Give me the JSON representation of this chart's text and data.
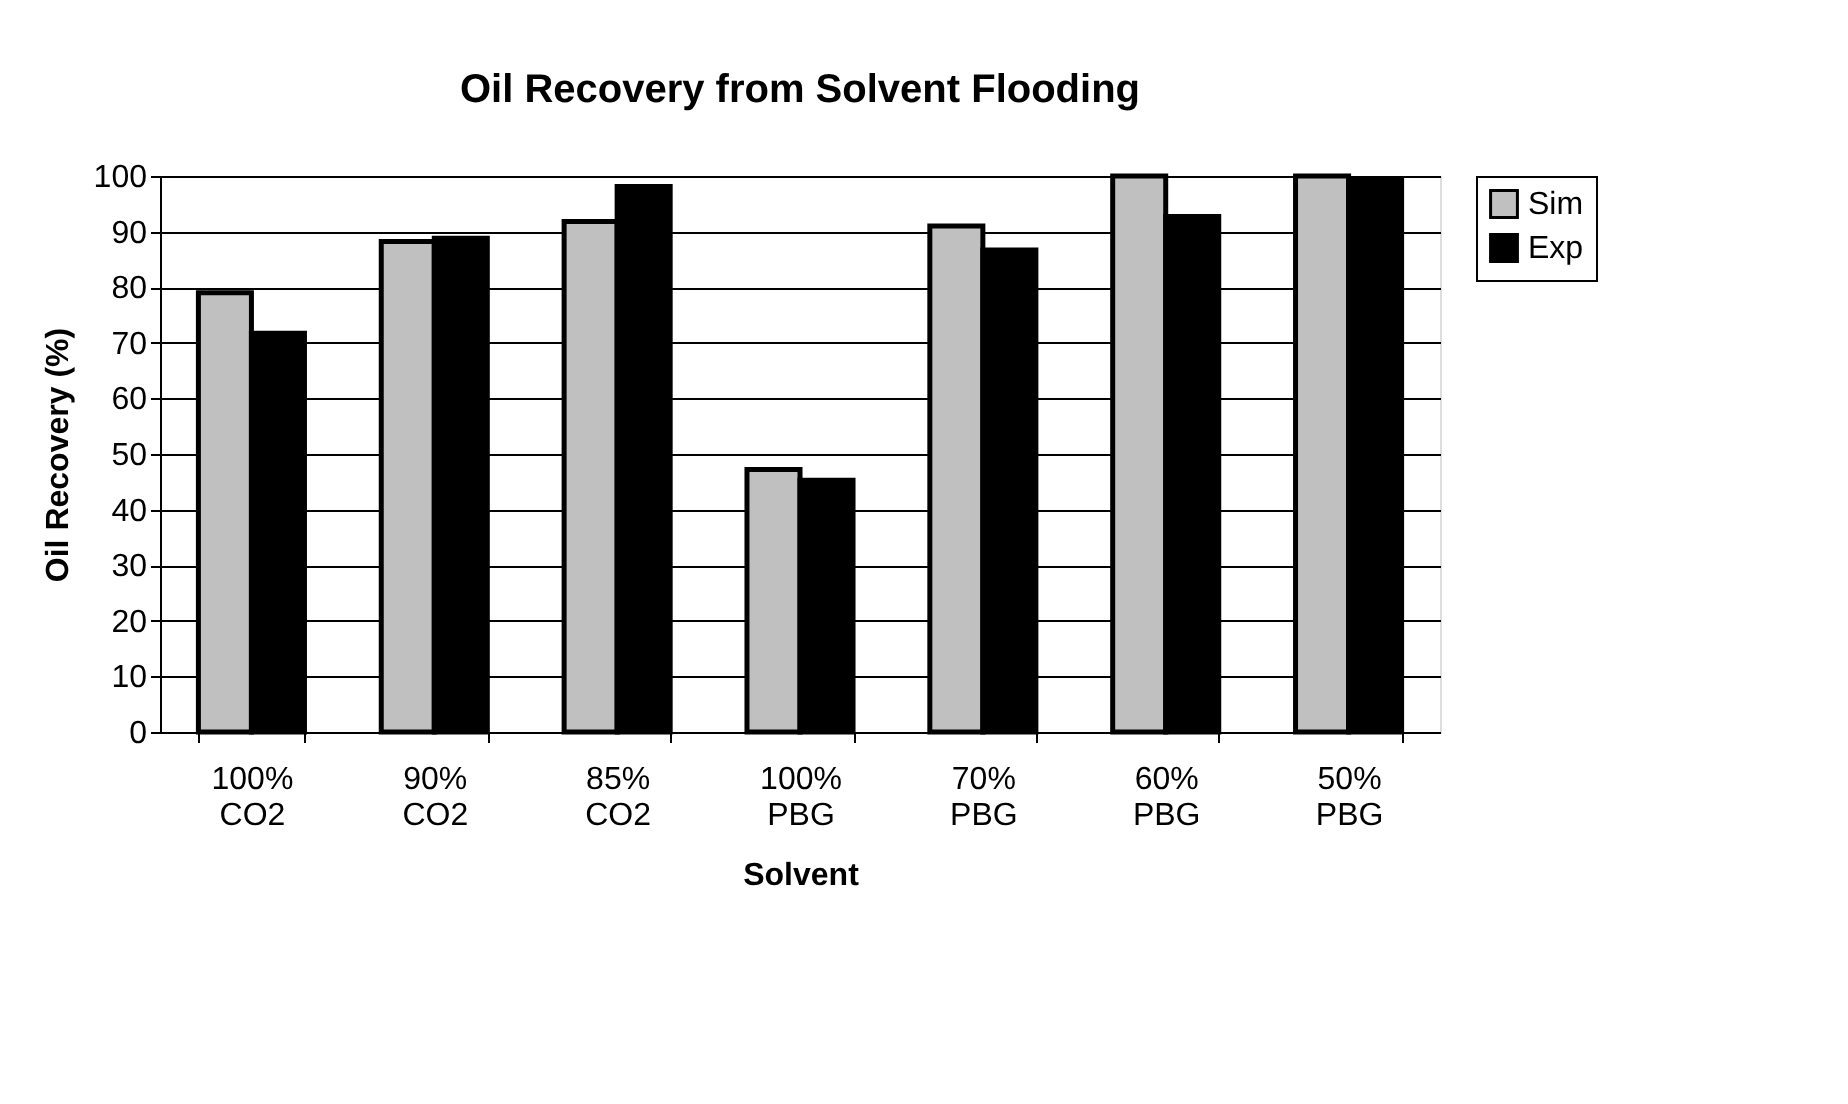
{
  "chart_data": {
    "type": "bar",
    "title": "Oil Recovery from Solvent Flooding",
    "xlabel": "Solvent",
    "ylabel": "Oil Recovery (%)",
    "categories": [
      "100% CO2",
      "90% CO2",
      "85% CO2",
      "100% PBG",
      "70% PBG",
      "60% PBG",
      "50% PBG"
    ],
    "series": [
      {
        "name": "Sim",
        "color": "#c0c0c0",
        "values": [
          79,
          88.2,
          91.8,
          47.2,
          91,
          100,
          100
        ]
      },
      {
        "name": "Exp",
        "color": "#000000",
        "values": [
          71.7,
          88.8,
          98.1,
          45.3,
          86.7,
          92.7,
          99.2
        ]
      }
    ],
    "ylim": [
      0,
      100
    ],
    "yticks": [
      0,
      10,
      20,
      30,
      40,
      50,
      60,
      70,
      80,
      90,
      100
    ],
    "grid": "y",
    "legend": "right"
  }
}
